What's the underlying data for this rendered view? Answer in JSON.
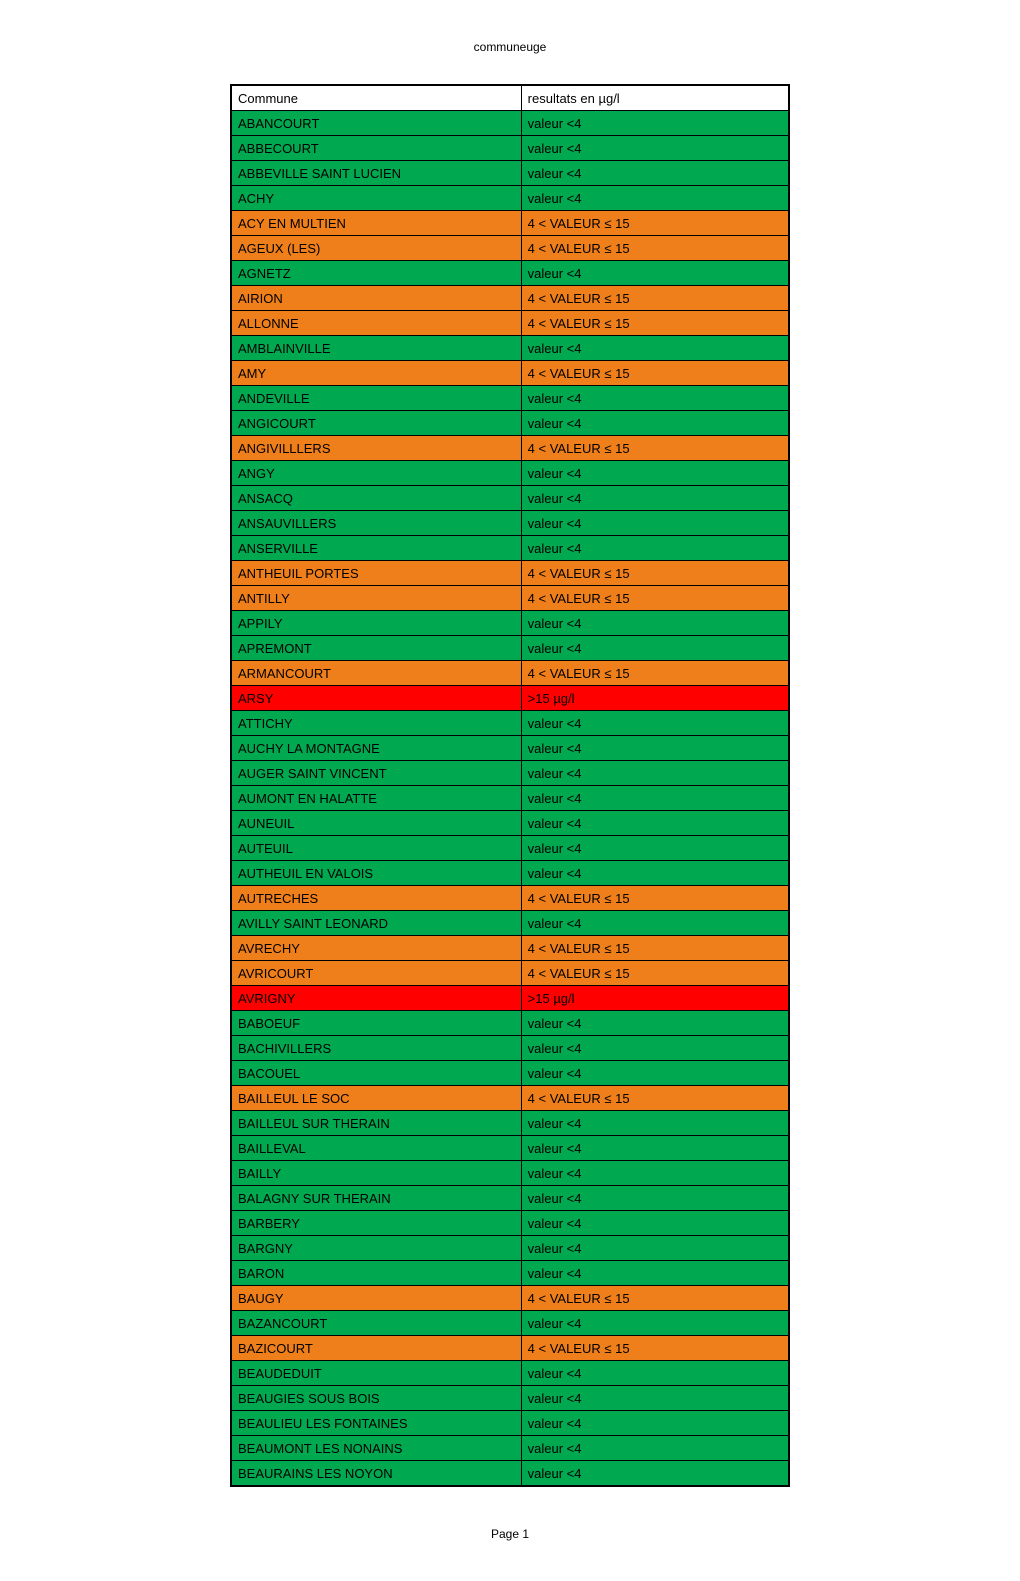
{
  "header": "communeuge",
  "footer": "Page 1",
  "colors": {
    "header_row": "#ffffff",
    "green": "#00a84f",
    "orange": "#ef7f1a",
    "red": "#ff0000",
    "text": "#000000"
  },
  "columns": [
    "Commune",
    "resultats en µg/l"
  ],
  "rows": [
    {
      "commune": "ABANCOURT",
      "result": "valeur <4",
      "color": "green"
    },
    {
      "commune": "ABBECOURT",
      "result": "valeur <4",
      "color": "green"
    },
    {
      "commune": "ABBEVILLE SAINT LUCIEN",
      "result": "valeur <4",
      "color": "green"
    },
    {
      "commune": "ACHY",
      "result": "valeur <4",
      "color": "green"
    },
    {
      "commune": "ACY EN MULTIEN",
      "result": "4 < VALEUR ≤ 15",
      "color": "orange"
    },
    {
      "commune": "AGEUX (LES)",
      "result": "4 < VALEUR ≤ 15",
      "color": "orange"
    },
    {
      "commune": "AGNETZ",
      "result": "valeur <4",
      "color": "green"
    },
    {
      "commune": "AIRION",
      "result": "4 < VALEUR ≤ 15",
      "color": "orange"
    },
    {
      "commune": "ALLONNE",
      "result": "4 < VALEUR ≤ 15",
      "color": "orange"
    },
    {
      "commune": "AMBLAINVILLE",
      "result": "valeur <4",
      "color": "green"
    },
    {
      "commune": "AMY",
      "result": "4 < VALEUR ≤ 15",
      "color": "orange"
    },
    {
      "commune": "ANDEVILLE",
      "result": "valeur <4",
      "color": "green"
    },
    {
      "commune": "ANGICOURT",
      "result": "valeur <4",
      "color": "green"
    },
    {
      "commune": "ANGIVILLLERS",
      "result": "4 < VALEUR ≤ 15",
      "color": "orange"
    },
    {
      "commune": "ANGY",
      "result": "valeur <4",
      "color": "green"
    },
    {
      "commune": "ANSACQ",
      "result": "valeur <4",
      "color": "green"
    },
    {
      "commune": "ANSAUVILLERS",
      "result": "valeur <4",
      "color": "green"
    },
    {
      "commune": "ANSERVILLE",
      "result": "valeur <4",
      "color": "green"
    },
    {
      "commune": "ANTHEUIL PORTES",
      "result": "4 < VALEUR ≤ 15",
      "color": "orange"
    },
    {
      "commune": "ANTILLY",
      "result": "4 < VALEUR ≤ 15",
      "color": "orange"
    },
    {
      "commune": "APPILY",
      "result": "valeur <4",
      "color": "green"
    },
    {
      "commune": "APREMONT",
      "result": "valeur <4",
      "color": "green"
    },
    {
      "commune": "ARMANCOURT",
      "result": "4 < VALEUR ≤ 15",
      "color": "orange"
    },
    {
      "commune": "ARSY",
      "result": ">15 µg/l",
      "color": "red"
    },
    {
      "commune": "ATTICHY",
      "result": "valeur <4",
      "color": "green"
    },
    {
      "commune": "AUCHY LA MONTAGNE",
      "result": "valeur <4",
      "color": "green"
    },
    {
      "commune": "AUGER SAINT VINCENT",
      "result": "valeur <4",
      "color": "green"
    },
    {
      "commune": "AUMONT EN HALATTE",
      "result": "valeur <4",
      "color": "green"
    },
    {
      "commune": "AUNEUIL",
      "result": "valeur <4",
      "color": "green"
    },
    {
      "commune": "AUTEUIL",
      "result": "valeur <4",
      "color": "green"
    },
    {
      "commune": "AUTHEUIL EN VALOIS",
      "result": "valeur <4",
      "color": "green"
    },
    {
      "commune": "AUTRECHES",
      "result": "4 < VALEUR ≤ 15",
      "color": "orange"
    },
    {
      "commune": "AVILLY SAINT LEONARD",
      "result": "valeur <4",
      "color": "green"
    },
    {
      "commune": "AVRECHY",
      "result": "4 < VALEUR ≤ 15",
      "color": "orange"
    },
    {
      "commune": "AVRICOURT",
      "result": "4 < VALEUR ≤ 15",
      "color": "orange"
    },
    {
      "commune": "AVRIGNY",
      "result": ">15 µg/l",
      "color": "red"
    },
    {
      "commune": "BABOEUF",
      "result": "valeur <4",
      "color": "green"
    },
    {
      "commune": "BACHIVILLERS",
      "result": "valeur <4",
      "color": "green"
    },
    {
      "commune": "BACOUEL",
      "result": "valeur <4",
      "color": "green"
    },
    {
      "commune": "BAILLEUL LE SOC",
      "result": "4 < VALEUR ≤ 15",
      "color": "orange"
    },
    {
      "commune": "BAILLEUL SUR THERAIN",
      "result": "valeur <4",
      "color": "green"
    },
    {
      "commune": "BAILLEVAL",
      "result": "valeur <4",
      "color": "green"
    },
    {
      "commune": "BAILLY",
      "result": "valeur <4",
      "color": "green"
    },
    {
      "commune": "BALAGNY SUR THERAIN",
      "result": "valeur <4",
      "color": "green"
    },
    {
      "commune": "BARBERY",
      "result": "valeur <4",
      "color": "green"
    },
    {
      "commune": "BARGNY",
      "result": "valeur <4",
      "color": "green"
    },
    {
      "commune": "BARON",
      "result": "valeur <4",
      "color": "green"
    },
    {
      "commune": "BAUGY",
      "result": "4 < VALEUR ≤ 15",
      "color": "orange"
    },
    {
      "commune": "BAZANCOURT",
      "result": "valeur <4",
      "color": "green"
    },
    {
      "commune": "BAZICOURT",
      "result": "4 < VALEUR ≤ 15",
      "color": "orange"
    },
    {
      "commune": "BEAUDEDUIT",
      "result": "valeur <4",
      "color": "green"
    },
    {
      "commune": "BEAUGIES SOUS BOIS",
      "result": "valeur <4",
      "color": "green"
    },
    {
      "commune": "BEAULIEU LES FONTAINES",
      "result": "valeur <4",
      "color": "green"
    },
    {
      "commune": "BEAUMONT LES NONAINS",
      "result": "valeur <4",
      "color": "green"
    },
    {
      "commune": "BEAURAINS LES NOYON",
      "result": "valeur <4",
      "color": "green"
    }
  ]
}
